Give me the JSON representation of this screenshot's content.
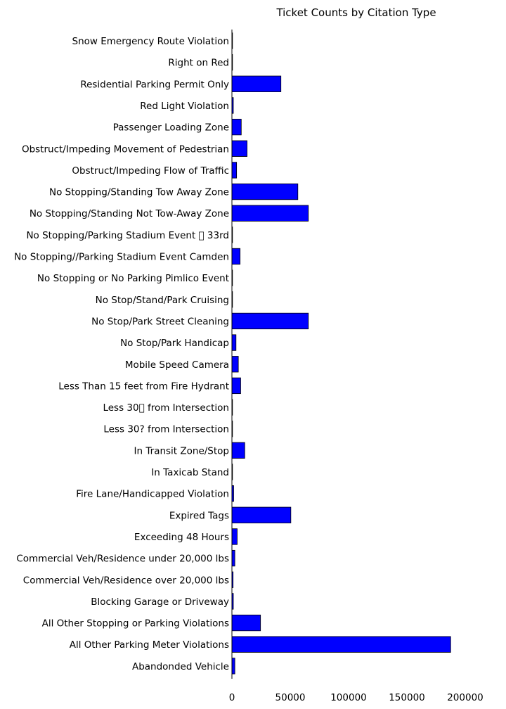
{
  "chart_data": {
    "type": "bar",
    "orientation": "horizontal",
    "title": "Ticket Counts by Citation Type",
    "xlabel": "",
    "ylabel": "",
    "xlim": [
      0,
      200000
    ],
    "xticks": [
      0,
      50000,
      100000,
      150000,
      200000
    ],
    "xtick_labels": [
      "0",
      "50000",
      "100000",
      "150000",
      "200000"
    ],
    "grid": false,
    "bar_color": "#0000ff",
    "bar_edge_color": "#000000",
    "categories": [
      "Snow Emergency Route Violation",
      "Right on Red",
      "Residential Parking Permit Only",
      "Red Light Violation",
      "Passenger Loading Zone",
      "Obstruct/Impeding Movement of Pedestrian",
      "Obstruct/Impeding Flow of Traffic",
      "No Stopping/Standing Tow Away Zone",
      "No Stopping/Standing Not Tow-Away Zone",
      "No Stopping/Parking Stadium Event \u0000 33rd",
      "No Stopping//Parking Stadium Event Camden",
      "No Stopping or No Parking Pimlico Event",
      "No Stop/Stand/Park Cruising",
      "No Stop/Park Street Cleaning",
      "No Stop/Park Handicap",
      "Mobile Speed Camera",
      "Less Than 15 feet from Fire Hydrant",
      "Less 30\u0000 from Intersection",
      "Less 30? from Intersection",
      "In Transit Zone/Stop",
      "In Taxicab Stand",
      "Fire Lane/Handicapped Violation",
      "Expired Tags",
      "Exceeding 48 Hours",
      "Commercial Veh/Residence under 20,000 lbs",
      "Commercial Veh/Residence over 20,000 lbs",
      "Blocking Garage or Driveway",
      "All Other Stopping or Parking Violations",
      "All Other Parking Meter Violations",
      "Abandonded Vehicle"
    ],
    "values": [
      80,
      150,
      42000,
      1200,
      8000,
      13000,
      4000,
      56500,
      65500,
      300,
      7000,
      100,
      300,
      65500,
      3500,
      5500,
      7500,
      200,
      100,
      11000,
      150,
      1500,
      50500,
      4500,
      2500,
      1000,
      1200,
      24500,
      187500,
      2500
    ]
  }
}
